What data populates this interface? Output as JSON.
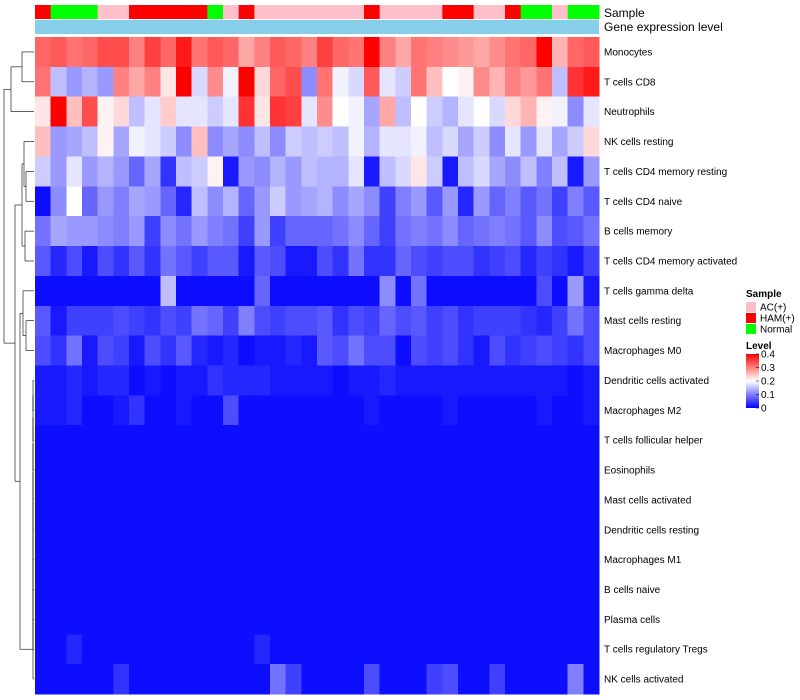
{
  "chart_data": {
    "type": "heatmap",
    "annotations": {
      "sample_label": "Sample",
      "level_label": "Gene expression level"
    },
    "legend": {
      "sample_title": "Sample",
      "sample_items": [
        {
          "label": "AC(+)",
          "color": "#FFC0CB"
        },
        {
          "label": "HAM(+)",
          "color": "#FF0000"
        },
        {
          "label": "Normal",
          "color": "#00FF00"
        }
      ],
      "level_title": "Level",
      "level_ticks": [
        "0.4",
        "0.3",
        "0.2",
        "0.1",
        "0"
      ],
      "level_tick_values": [
        0.4,
        0.3,
        0.2,
        0.1,
        0
      ],
      "level_range": [
        0,
        0.4
      ],
      "placement": "right"
    },
    "color_scale": {
      "low": "#0000FF",
      "mid": "#FFFFFF",
      "high": "#FF0000",
      "midpoint": 0.2
    },
    "sample_groups": [
      "HAM(+)",
      "Normal",
      "Normal",
      "Normal",
      "AC(+)",
      "AC(+)",
      "HAM(+)",
      "HAM(+)",
      "HAM(+)",
      "HAM(+)",
      "HAM(+)",
      "Normal",
      "AC(+)",
      "HAM(+)",
      "AC(+)",
      "AC(+)",
      "AC(+)",
      "AC(+)",
      "AC(+)",
      "AC(+)",
      "AC(+)",
      "HAM(+)",
      "AC(+)",
      "AC(+)",
      "AC(+)",
      "AC(+)",
      "HAM(+)",
      "HAM(+)",
      "AC(+)",
      "AC(+)",
      "HAM(+)",
      "Normal",
      "Normal",
      "AC(+)",
      "Normal",
      "Normal"
    ],
    "rows": [
      "Monocytes",
      "T cells CD8",
      "Neutrophils",
      "NK cells resting",
      "T cells CD4 memory resting",
      "T cells CD4 naive",
      "B cells memory",
      "T cells CD4 memory activated",
      "T cells gamma delta",
      "Mast cells resting",
      "Macrophages M0",
      "Dendritic cells activated",
      "Macrophages M2",
      "T cells follicular helper",
      "Eosinophils",
      "Mast cells activated",
      "Dendritic cells resting",
      "Macrophages M1",
      "B cells naive",
      "Plasma cells",
      "T cells regulatory  Tregs",
      "NK cells activated"
    ],
    "values": [
      [
        0.32,
        0.33,
        0.31,
        0.32,
        0.34,
        0.34,
        0.3,
        0.35,
        0.32,
        0.38,
        0.31,
        0.33,
        0.32,
        0.27,
        0.3,
        0.33,
        0.32,
        0.3,
        0.35,
        0.32,
        0.31,
        0.4,
        0.3,
        0.27,
        0.31,
        0.3,
        0.29,
        0.28,
        0.27,
        0.29,
        0.31,
        0.32,
        0.4,
        0.26,
        0.32,
        0.33
      ],
      [
        0.31,
        0.15,
        0.12,
        0.14,
        0.12,
        0.3,
        0.27,
        0.3,
        0.22,
        0.4,
        0.17,
        0.29,
        0.19,
        0.4,
        0.23,
        0.32,
        0.34,
        0.11,
        0.31,
        0.19,
        0.17,
        0.33,
        0.18,
        0.16,
        0.31,
        0.25,
        0.2,
        0.21,
        0.29,
        0.26,
        0.3,
        0.28,
        0.31,
        0.15,
        0.36,
        0.38
      ],
      [
        0.22,
        0.4,
        0.25,
        0.34,
        0.21,
        0.23,
        0.15,
        0.18,
        0.24,
        0.18,
        0.18,
        0.16,
        0.18,
        0.36,
        0.22,
        0.36,
        0.35,
        0.18,
        0.29,
        0.2,
        0.19,
        0.13,
        0.27,
        0.15,
        0.2,
        0.16,
        0.14,
        0.18,
        0.2,
        0.17,
        0.23,
        0.26,
        0.21,
        0.19,
        0.11,
        0.18
      ],
      [
        0.25,
        0.12,
        0.13,
        0.15,
        0.21,
        0.13,
        0.19,
        0.18,
        0.16,
        0.11,
        0.25,
        0.11,
        0.13,
        0.11,
        0.15,
        0.11,
        0.16,
        0.15,
        0.16,
        0.15,
        0.19,
        0.14,
        0.18,
        0.18,
        0.19,
        0.15,
        0.17,
        0.13,
        0.16,
        0.11,
        0.18,
        0.12,
        0.18,
        0.13,
        0.16,
        0.23
      ],
      [
        0.16,
        0.12,
        0.18,
        0.12,
        0.14,
        0.12,
        0.08,
        0.13,
        0.04,
        0.15,
        0.16,
        0.21,
        0.02,
        0.12,
        0.11,
        0.14,
        0.12,
        0.15,
        0.14,
        0.14,
        0.18,
        0.02,
        0.15,
        0.17,
        0.22,
        0.16,
        0.02,
        0.15,
        0.17,
        0.13,
        0.11,
        0.15,
        0.1,
        0.15,
        0.02,
        0.12
      ],
      [
        0.01,
        0.11,
        0.2,
        0.08,
        0.12,
        0.1,
        0.13,
        0.12,
        0.08,
        0.03,
        0.15,
        0.11,
        0.14,
        0.08,
        0.12,
        0.16,
        0.12,
        0.13,
        0.14,
        0.11,
        0.13,
        0.11,
        0.05,
        0.1,
        0.12,
        0.07,
        0.12,
        0.03,
        0.12,
        0.08,
        0.1,
        0.07,
        0.09,
        0.05,
        0.1,
        0.07
      ],
      [
        0.09,
        0.13,
        0.12,
        0.12,
        0.11,
        0.1,
        0.12,
        0.05,
        0.11,
        0.09,
        0.12,
        0.1,
        0.09,
        0.05,
        0.12,
        0.05,
        0.08,
        0.08,
        0.08,
        0.09,
        0.11,
        0.08,
        0.05,
        0.09,
        0.1,
        0.09,
        0.11,
        0.08,
        0.09,
        0.1,
        0.09,
        0.07,
        0.11,
        0.06,
        0.07,
        0.09
      ],
      [
        0.07,
        0.03,
        0.06,
        0.02,
        0.06,
        0.04,
        0.07,
        0.04,
        0.09,
        0.07,
        0.05,
        0.07,
        0.07,
        0.02,
        0.07,
        0.06,
        0.02,
        0.02,
        0.06,
        0.04,
        0.09,
        0.04,
        0.04,
        0.08,
        0.06,
        0.05,
        0.06,
        0.06,
        0.04,
        0.05,
        0.06,
        0.03,
        0.05,
        0.04,
        0.02,
        0.05
      ],
      [
        0.01,
        0.01,
        0.01,
        0.01,
        0.01,
        0.01,
        0.01,
        0.01,
        0.15,
        0.01,
        0.01,
        0.01,
        0.01,
        0.01,
        0.08,
        0.01,
        0.01,
        0.01,
        0.01,
        0.01,
        0.01,
        0.01,
        0.11,
        0.01,
        0.09,
        0.01,
        0.01,
        0.01,
        0.01,
        0.01,
        0.01,
        0.01,
        0.06,
        0.01,
        0.12,
        0.02
      ],
      [
        0.07,
        0.02,
        0.05,
        0.05,
        0.05,
        0.06,
        0.05,
        0.04,
        0.06,
        0.05,
        0.09,
        0.08,
        0.05,
        0.1,
        0.06,
        0.05,
        0.06,
        0.06,
        0.07,
        0.04,
        0.06,
        0.05,
        0.08,
        0.06,
        0.07,
        0.05,
        0.06,
        0.04,
        0.05,
        0.05,
        0.05,
        0.04,
        0.03,
        0.05,
        0.09,
        0.06
      ],
      [
        0.06,
        0.04,
        0.09,
        0.02,
        0.06,
        0.05,
        0.02,
        0.06,
        0.04,
        0.07,
        0.03,
        0.02,
        0.03,
        0.01,
        0.02,
        0.02,
        0.03,
        0.02,
        0.07,
        0.06,
        0.09,
        0.06,
        0.06,
        0.01,
        0.06,
        0.05,
        0.06,
        0.04,
        0.02,
        0.06,
        0.04,
        0.05,
        0.06,
        0.05,
        0.04,
        0.06
      ],
      [
        0.02,
        0.02,
        0.03,
        0.02,
        0.03,
        0.03,
        0.01,
        0.02,
        0.01,
        0.02,
        0.02,
        0.04,
        0.03,
        0.03,
        0.03,
        0.02,
        0.02,
        0.02,
        0.02,
        0.01,
        0.02,
        0.02,
        0.03,
        0.02,
        0.02,
        0.02,
        0.02,
        0.02,
        0.02,
        0.02,
        0.02,
        0.02,
        0.02,
        0.02,
        0.01,
        0.02
      ],
      [
        0.02,
        0.02,
        0.03,
        0.01,
        0.01,
        0.02,
        0.04,
        0.01,
        0.01,
        0.02,
        0.01,
        0.01,
        0.06,
        0.01,
        0.01,
        0.01,
        0.01,
        0.01,
        0.01,
        0.01,
        0.01,
        0.02,
        0.01,
        0.01,
        0.01,
        0.01,
        0.02,
        0.01,
        0.01,
        0.01,
        0.01,
        0.01,
        0.02,
        0.01,
        0.01,
        0.02
      ],
      [
        0.01,
        0.01,
        0.01,
        0.01,
        0.01,
        0.01,
        0.01,
        0.01,
        0.01,
        0.01,
        0.01,
        0.01,
        0.01,
        0.01,
        0.01,
        0.01,
        0.01,
        0.01,
        0.01,
        0.01,
        0.01,
        0.01,
        0.01,
        0.01,
        0.01,
        0.01,
        0.01,
        0.01,
        0.01,
        0.01,
        0.01,
        0.01,
        0.01,
        0.01,
        0.01,
        0.01
      ],
      [
        0.01,
        0.01,
        0.01,
        0.01,
        0.01,
        0.01,
        0.01,
        0.01,
        0.01,
        0.01,
        0.01,
        0.01,
        0.01,
        0.01,
        0.01,
        0.01,
        0.01,
        0.01,
        0.01,
        0.01,
        0.01,
        0.01,
        0.01,
        0.01,
        0.01,
        0.01,
        0.01,
        0.01,
        0.01,
        0.01,
        0.01,
        0.01,
        0.01,
        0.01,
        0.01,
        0.01
      ],
      [
        0.01,
        0.01,
        0.01,
        0.01,
        0.01,
        0.01,
        0.01,
        0.01,
        0.01,
        0.01,
        0.01,
        0.01,
        0.01,
        0.01,
        0.01,
        0.01,
        0.01,
        0.01,
        0.01,
        0.01,
        0.01,
        0.01,
        0.01,
        0.01,
        0.01,
        0.01,
        0.01,
        0.01,
        0.01,
        0.01,
        0.01,
        0.01,
        0.01,
        0.01,
        0.01,
        0.01
      ],
      [
        0.01,
        0.01,
        0.01,
        0.01,
        0.01,
        0.01,
        0.01,
        0.01,
        0.01,
        0.01,
        0.01,
        0.01,
        0.01,
        0.01,
        0.01,
        0.01,
        0.01,
        0.01,
        0.01,
        0.01,
        0.01,
        0.01,
        0.01,
        0.01,
        0.01,
        0.01,
        0.01,
        0.01,
        0.01,
        0.01,
        0.01,
        0.01,
        0.01,
        0.01,
        0.01,
        0.01
      ],
      [
        0.01,
        0.01,
        0.01,
        0.01,
        0.01,
        0.01,
        0.01,
        0.01,
        0.01,
        0.01,
        0.01,
        0.01,
        0.01,
        0.01,
        0.01,
        0.01,
        0.01,
        0.01,
        0.01,
        0.01,
        0.01,
        0.01,
        0.01,
        0.01,
        0.01,
        0.01,
        0.01,
        0.01,
        0.01,
        0.01,
        0.01,
        0.01,
        0.01,
        0.01,
        0.01,
        0.01
      ],
      [
        0.01,
        0.01,
        0.01,
        0.01,
        0.01,
        0.01,
        0.01,
        0.01,
        0.01,
        0.01,
        0.01,
        0.01,
        0.01,
        0.01,
        0.01,
        0.01,
        0.01,
        0.01,
        0.01,
        0.01,
        0.01,
        0.01,
        0.01,
        0.01,
        0.01,
        0.01,
        0.01,
        0.01,
        0.01,
        0.01,
        0.01,
        0.01,
        0.01,
        0.01,
        0.01,
        0.01
      ],
      [
        0.01,
        0.01,
        0.01,
        0.01,
        0.01,
        0.01,
        0.01,
        0.01,
        0.01,
        0.01,
        0.01,
        0.01,
        0.01,
        0.01,
        0.01,
        0.01,
        0.01,
        0.01,
        0.01,
        0.01,
        0.01,
        0.01,
        0.01,
        0.01,
        0.01,
        0.01,
        0.01,
        0.01,
        0.01,
        0.01,
        0.01,
        0.01,
        0.01,
        0.01,
        0.01,
        0.01
      ],
      [
        0.01,
        0.01,
        0.03,
        0.01,
        0.01,
        0.01,
        0.01,
        0.01,
        0.01,
        0.01,
        0.01,
        0.01,
        0.01,
        0.01,
        0.03,
        0.01,
        0.01,
        0.01,
        0.01,
        0.01,
        0.01,
        0.01,
        0.01,
        0.01,
        0.01,
        0.01,
        0.01,
        0.01,
        0.01,
        0.01,
        0.01,
        0.01,
        0.01,
        0.01,
        0.01,
        0.01
      ],
      [
        0.01,
        0.01,
        0.01,
        0.01,
        0.01,
        0.04,
        0.01,
        0.01,
        0.01,
        0.01,
        0.01,
        0.01,
        0.01,
        0.01,
        0.01,
        0.09,
        0.05,
        0.01,
        0.01,
        0.01,
        0.01,
        0.06,
        0.01,
        0.01,
        0.01,
        0.05,
        0.06,
        0.01,
        0.01,
        0.05,
        0.01,
        0.01,
        0.01,
        0.01,
        0.1,
        0.01
      ]
    ]
  }
}
